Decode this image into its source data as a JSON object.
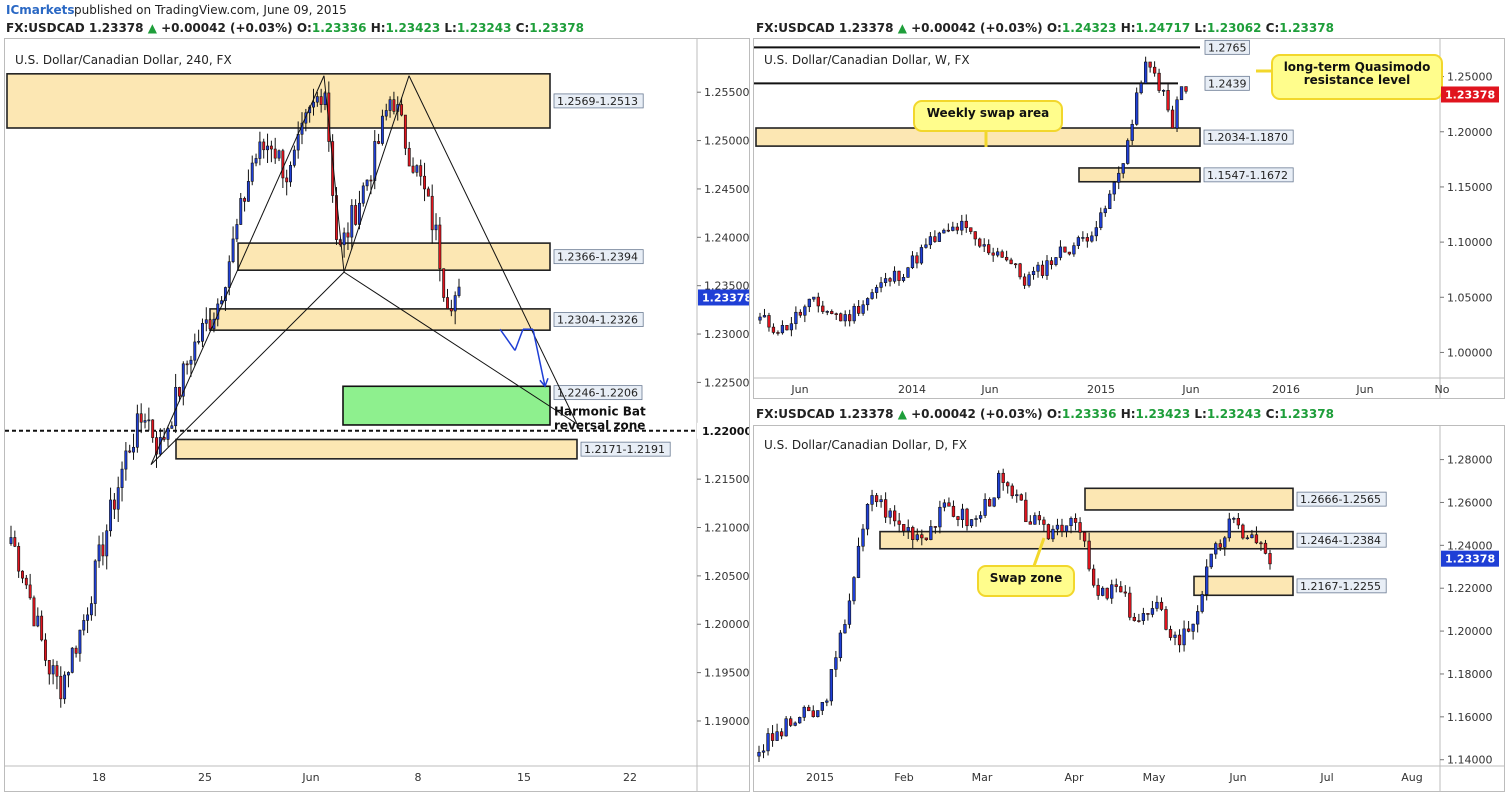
{
  "header": {
    "brand": "ICmarkets",
    "published": "published on TradingView.com, June 09, 2015"
  },
  "colors": {
    "up": "#1f3fd6",
    "down": "#e0141e",
    "zone_fill": "#fbe3a6",
    "zone_stroke": "#222222",
    "green_zone": "#8ef08e",
    "callout": "#fffd8c",
    "callout_border": "#f2d72c",
    "arrow": "#1f3fd6"
  },
  "chart_data": [
    {
      "id": "h4",
      "type": "candlestick",
      "symbol_line": {
        "symbol": "FX:USDCAD",
        "last": "1.23378",
        "arrow": "▲",
        "change": "+0.00042 (+0.03%)",
        "o_label": "O:",
        "o": "1.23336",
        "h_label": "H:",
        "h": "1.23423",
        "l_label": "L:",
        "l": "1.23243",
        "c_label": "C:",
        "c": "1.23378"
      },
      "title": "U.S. Dollar/Canadian Dollar, 240, FX",
      "ylim": [
        1.187,
        1.2605
      ],
      "y_ticks": [
        "1.25500",
        "1.25000",
        "1.24500",
        "1.24000",
        "1.23500",
        "1.23000",
        "1.22500",
        "1.21500",
        "1.21000",
        "1.20500",
        "1.20000",
        "1.19500",
        "1.19000"
      ],
      "x_ticks": [
        "18",
        "25",
        "Jun",
        "8",
        "15",
        "22"
      ],
      "last_price_label": "1.23378",
      "level_line": {
        "value": 1.22,
        "label": "1.22000",
        "style": "dashed"
      },
      "zones": [
        {
          "label": "1.2569-1.2513",
          "low": 1.2513,
          "high": 1.2569
        },
        {
          "label": "1.2366-1.2394",
          "low": 1.2366,
          "high": 1.2394
        },
        {
          "label": "1.2304-1.2326",
          "low": 1.2304,
          "high": 1.2326
        },
        {
          "label": "1.2171-1.2191",
          "low": 1.2171,
          "high": 1.2191
        }
      ],
      "green_zone": {
        "label": "1.2246-1.2206",
        "low": 1.2206,
        "high": 1.2246
      },
      "annotations": [
        "Harmonic Bat",
        "reversal zone"
      ]
    },
    {
      "id": "weekly",
      "type": "candlestick",
      "symbol_line": {
        "symbol": "FX:USDCAD",
        "last": "1.23378",
        "arrow": "▲",
        "change": "+0.00042 (+0.03%)",
        "o_label": "O:",
        "o": "1.24323",
        "h_label": "H:",
        "h": "1.24717",
        "l_label": "L:",
        "l": "1.23062",
        "c_label": "C:",
        "c": "1.23378"
      },
      "title": "U.S. Dollar/Canadian Dollar, W, FX",
      "ylim": [
        0.985,
        1.275
      ],
      "y_ticks": [
        "1.25000",
        "1.20000",
        "1.15000",
        "1.10000",
        "1.05000",
        "1.00000"
      ],
      "x_ticks": [
        "Jun",
        "2014",
        "Jun",
        "2015",
        "Jun",
        "2016",
        "Jun",
        "No"
      ],
      "last_price_label": "1.23378",
      "levels": [
        {
          "label": "1.2765",
          "value": 1.2765
        },
        {
          "label": "1.2439",
          "value": 1.2439
        }
      ],
      "zones": [
        {
          "label": "1.2034-1.1870",
          "low": 1.187,
          "high": 1.2034
        },
        {
          "label": "1.1547-1.1672",
          "low": 1.1547,
          "high": 1.1672
        }
      ],
      "callouts": [
        "Weekly swap area",
        "long-term Quasimodo",
        "resistance level"
      ]
    },
    {
      "id": "daily",
      "type": "candlestick",
      "symbol_line": {
        "symbol": "FX:USDCAD",
        "last": "1.23378",
        "arrow": "▲",
        "change": "+0.00042 (+0.03%)",
        "o_label": "O:",
        "o": "1.23336",
        "h_label": "H:",
        "h": "1.23423",
        "l_label": "L:",
        "l": "1.23243",
        "c_label": "C:",
        "c": "1.23378"
      },
      "title": "U.S. Dollar/Canadian Dollar, D, FX",
      "ylim": [
        1.138,
        1.291
      ],
      "y_ticks": [
        "1.28000",
        "1.26000",
        "1.24000",
        "1.22000",
        "1.20000",
        "1.18000",
        "1.16000",
        "1.14000"
      ],
      "x_ticks": [
        "2015",
        "Feb",
        "Mar",
        "Apr",
        "May",
        "Jun",
        "Jul",
        "Aug"
      ],
      "last_price_label": "1.23378",
      "zones": [
        {
          "label": "1.2666-1.2565",
          "low": 1.2565,
          "high": 1.2666
        },
        {
          "label": "1.2464-1.2384",
          "low": 1.2384,
          "high": 1.2464
        },
        {
          "label": "1.2167-1.2255",
          "low": 1.2167,
          "high": 1.2255
        }
      ],
      "callouts": [
        "Swap zone"
      ]
    }
  ]
}
